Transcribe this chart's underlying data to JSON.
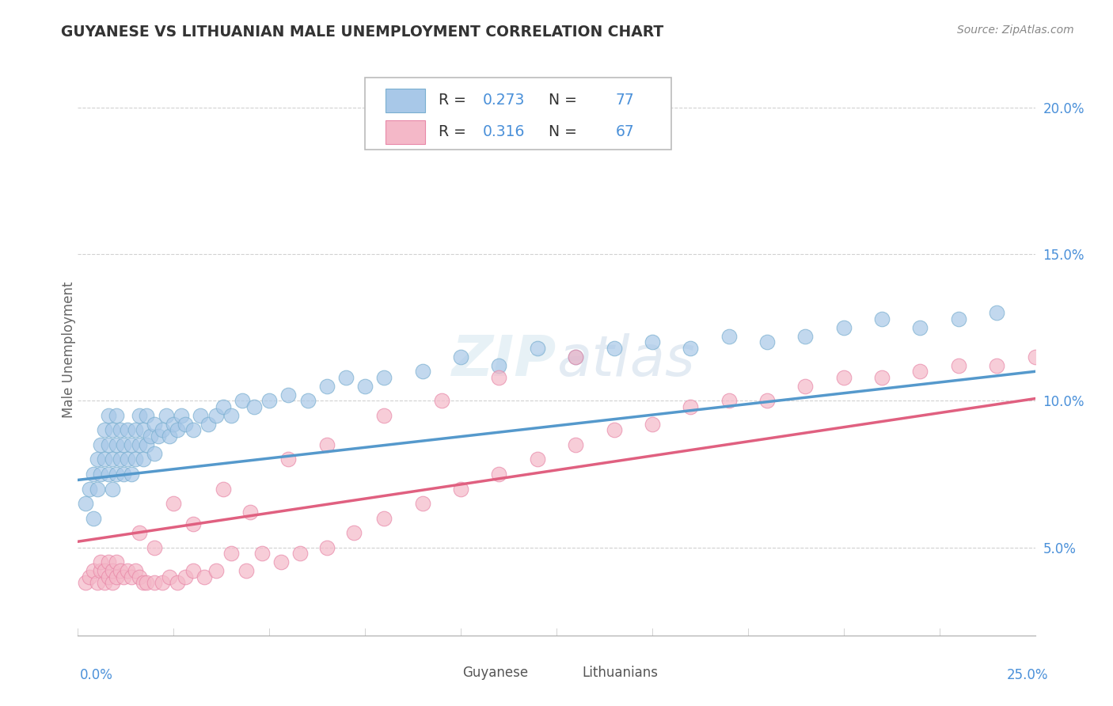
{
  "title": "GUYANESE VS LITHUANIAN MALE UNEMPLOYMENT CORRELATION CHART",
  "source": "Source: ZipAtlas.com",
  "ylabel": "Male Unemployment",
  "xlim": [
    0.0,
    0.25
  ],
  "ylim": [
    0.02,
    0.215
  ],
  "yticks": [
    0.05,
    0.1,
    0.15,
    0.2
  ],
  "ytick_labels": [
    "5.0%",
    "10.0%",
    "15.0%",
    "20.0%"
  ],
  "blue_color": "#a8c8e8",
  "pink_color": "#f4b8c8",
  "blue_edge_color": "#7aafd0",
  "pink_edge_color": "#e888a8",
  "blue_line_color": "#5599cc",
  "pink_line_color": "#e06080",
  "legend_blue_R": "0.273",
  "legend_blue_N": "77",
  "legend_pink_R": "0.316",
  "legend_pink_N": "67",
  "blue_intercept": 0.073,
  "blue_slope": 0.148,
  "pink_intercept": 0.052,
  "pink_slope": 0.195,
  "guyanese_x": [
    0.002,
    0.003,
    0.004,
    0.004,
    0.005,
    0.005,
    0.006,
    0.006,
    0.007,
    0.007,
    0.008,
    0.008,
    0.008,
    0.009,
    0.009,
    0.009,
    0.01,
    0.01,
    0.01,
    0.011,
    0.011,
    0.012,
    0.012,
    0.013,
    0.013,
    0.014,
    0.014,
    0.015,
    0.015,
    0.016,
    0.016,
    0.017,
    0.017,
    0.018,
    0.018,
    0.019,
    0.02,
    0.02,
    0.021,
    0.022,
    0.023,
    0.024,
    0.025,
    0.026,
    0.027,
    0.028,
    0.03,
    0.032,
    0.034,
    0.036,
    0.038,
    0.04,
    0.043,
    0.046,
    0.05,
    0.055,
    0.06,
    0.065,
    0.07,
    0.075,
    0.08,
    0.09,
    0.1,
    0.11,
    0.12,
    0.13,
    0.14,
    0.15,
    0.16,
    0.17,
    0.18,
    0.19,
    0.2,
    0.21,
    0.22,
    0.23,
    0.24
  ],
  "guyanese_y": [
    0.065,
    0.07,
    0.075,
    0.06,
    0.08,
    0.07,
    0.085,
    0.075,
    0.09,
    0.08,
    0.075,
    0.085,
    0.095,
    0.07,
    0.08,
    0.09,
    0.075,
    0.085,
    0.095,
    0.08,
    0.09,
    0.075,
    0.085,
    0.08,
    0.09,
    0.075,
    0.085,
    0.08,
    0.09,
    0.085,
    0.095,
    0.08,
    0.09,
    0.085,
    0.095,
    0.088,
    0.092,
    0.082,
    0.088,
    0.09,
    0.095,
    0.088,
    0.092,
    0.09,
    0.095,
    0.092,
    0.09,
    0.095,
    0.092,
    0.095,
    0.098,
    0.095,
    0.1,
    0.098,
    0.1,
    0.102,
    0.1,
    0.105,
    0.108,
    0.105,
    0.108,
    0.11,
    0.115,
    0.112,
    0.118,
    0.115,
    0.118,
    0.12,
    0.118,
    0.122,
    0.12,
    0.122,
    0.125,
    0.128,
    0.125,
    0.128,
    0.13
  ],
  "lithuanian_x": [
    0.002,
    0.003,
    0.004,
    0.005,
    0.006,
    0.006,
    0.007,
    0.007,
    0.008,
    0.008,
    0.009,
    0.009,
    0.01,
    0.01,
    0.011,
    0.012,
    0.013,
    0.014,
    0.015,
    0.016,
    0.017,
    0.018,
    0.02,
    0.022,
    0.024,
    0.026,
    0.028,
    0.03,
    0.033,
    0.036,
    0.04,
    0.044,
    0.048,
    0.053,
    0.058,
    0.065,
    0.072,
    0.08,
    0.09,
    0.1,
    0.11,
    0.12,
    0.13,
    0.14,
    0.15,
    0.16,
    0.17,
    0.18,
    0.19,
    0.2,
    0.21,
    0.22,
    0.23,
    0.24,
    0.25,
    0.016,
    0.02,
    0.025,
    0.03,
    0.038,
    0.045,
    0.055,
    0.065,
    0.08,
    0.095,
    0.11,
    0.13
  ],
  "lithuanian_y": [
    0.038,
    0.04,
    0.042,
    0.038,
    0.042,
    0.045,
    0.038,
    0.042,
    0.04,
    0.045,
    0.038,
    0.042,
    0.04,
    0.045,
    0.042,
    0.04,
    0.042,
    0.04,
    0.042,
    0.04,
    0.038,
    0.038,
    0.038,
    0.038,
    0.04,
    0.038,
    0.04,
    0.042,
    0.04,
    0.042,
    0.048,
    0.042,
    0.048,
    0.045,
    0.048,
    0.05,
    0.055,
    0.06,
    0.065,
    0.07,
    0.075,
    0.08,
    0.085,
    0.09,
    0.092,
    0.098,
    0.1,
    0.1,
    0.105,
    0.108,
    0.108,
    0.11,
    0.112,
    0.112,
    0.115,
    0.055,
    0.05,
    0.065,
    0.058,
    0.07,
    0.062,
    0.08,
    0.085,
    0.095,
    0.1,
    0.108,
    0.115
  ]
}
